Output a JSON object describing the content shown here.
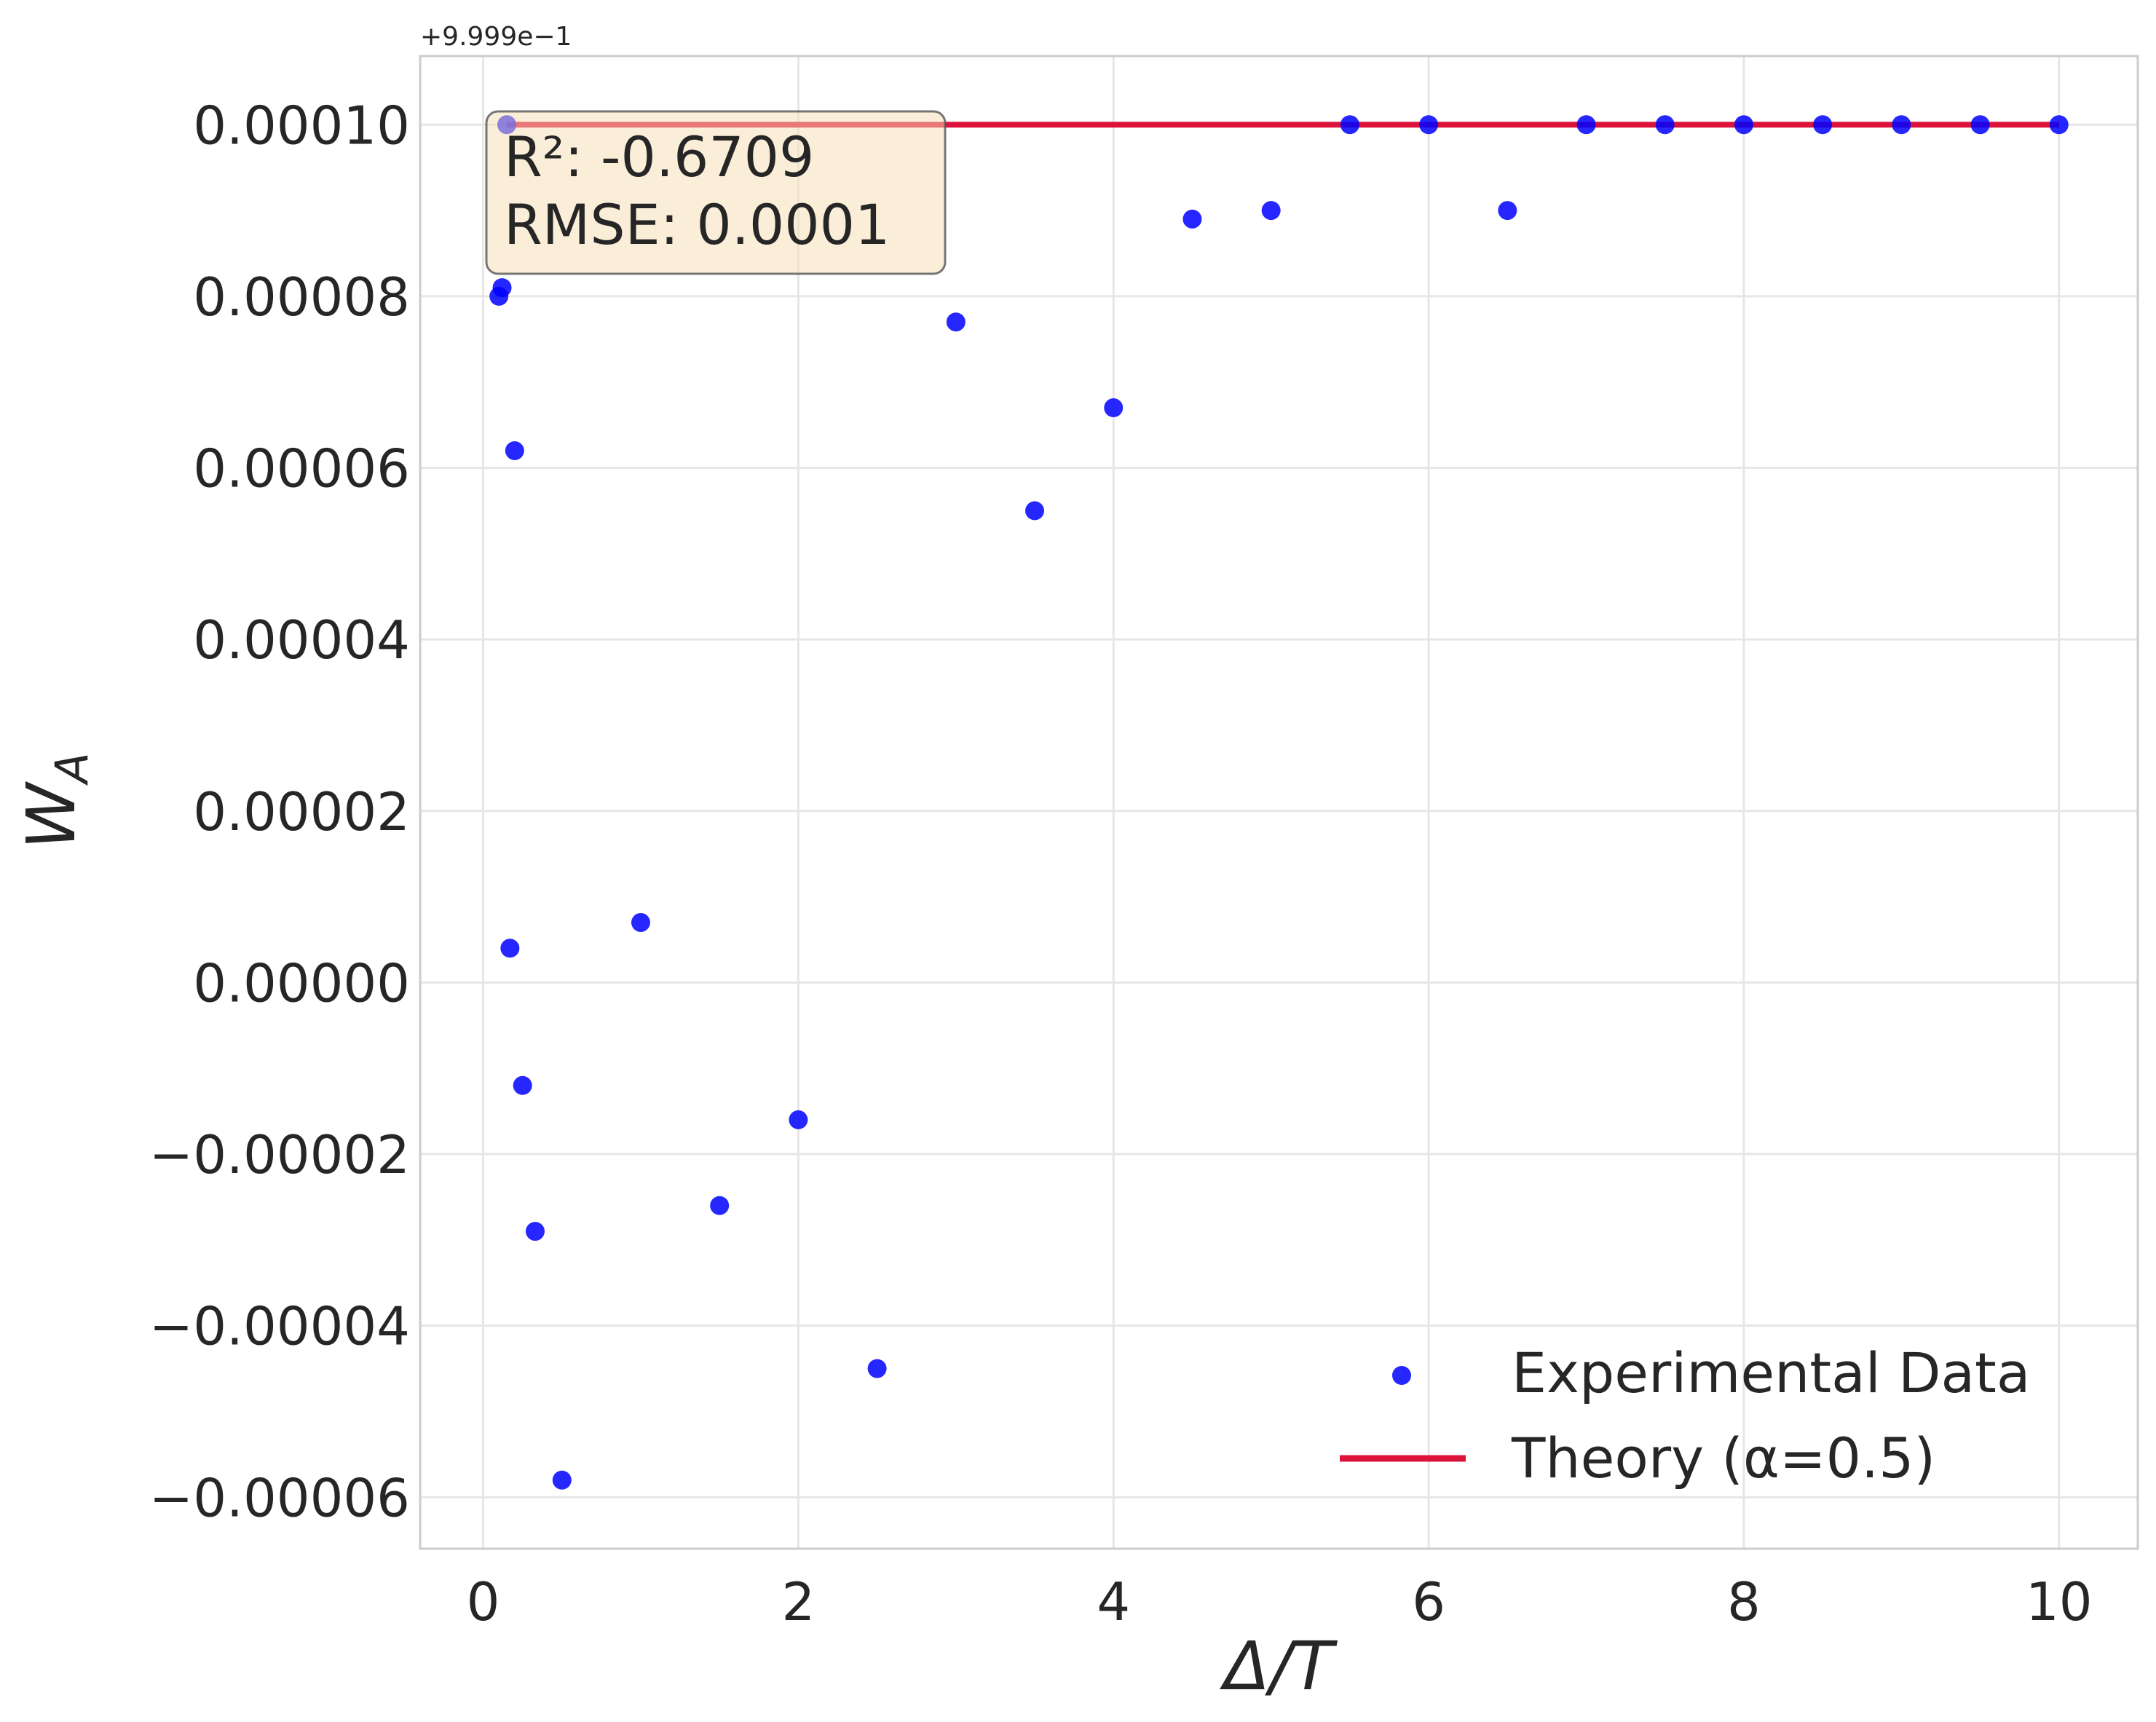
{
  "chart_data": {
    "type": "scatter",
    "offset_text": "+9.999e−1",
    "xlabel_main": "Δ/",
    "xlabel_var": "T",
    "ylabel_main": "W",
    "ylabel_sub": "A",
    "xlim": [
      -0.4,
      10.5
    ],
    "ylim": [
      -6.6e-05,
      0.000108
    ],
    "x_ticks": [
      0,
      2,
      4,
      6,
      8,
      10
    ],
    "x_tick_labels": [
      "0",
      "2",
      "4",
      "6",
      "8",
      "10"
    ],
    "y_ticks": [
      -6e-05,
      -4e-05,
      -2e-05,
      0.0,
      2e-05,
      4e-05,
      6e-05,
      8e-05,
      0.0001
    ],
    "y_tick_labels": [
      "−0.00006",
      "−0.00004",
      "−0.00002",
      "0.00000",
      "0.00002",
      "0.00004",
      "0.00006",
      "0.00008",
      "0.00010"
    ],
    "grid": true,
    "legend_position": "lower-right",
    "stats_box": {
      "r2": "R²: -0.6709",
      "rmse": "RMSE: 0.0001"
    },
    "series": [
      {
        "name": "Experimental Data",
        "kind": "scatter",
        "color": "#0000ff",
        "x": [
          0.1,
          0.12,
          0.15,
          0.17,
          0.2,
          0.25,
          0.33,
          0.5,
          1.0,
          1.5,
          2.0,
          2.5,
          3.0,
          3.5,
          4.0,
          4.5,
          5.0,
          5.5,
          6.0,
          6.5,
          7.0,
          7.5,
          8.0,
          8.5,
          9.0,
          9.5,
          10.0
        ],
        "y": [
          8e-05,
          8.1e-05,
          0.0001,
          4e-06,
          6.2e-05,
          -1.2e-05,
          -2.9e-05,
          -5.8e-05,
          7e-06,
          -2.6e-05,
          -1.6e-05,
          -4.5e-05,
          7.7e-05,
          5.5e-05,
          6.7e-05,
          8.9e-05,
          9e-05,
          0.0001,
          0.0001,
          9e-05,
          0.0001,
          0.0001,
          0.0001,
          0.0001,
          0.0001,
          0.0001,
          0.0001
        ]
      },
      {
        "name": "Theory (α=0.5)",
        "kind": "line",
        "color": "#dc143c",
        "x": [
          0.15,
          10.0
        ],
        "y": [
          0.0001,
          0.0001
        ]
      }
    ]
  }
}
